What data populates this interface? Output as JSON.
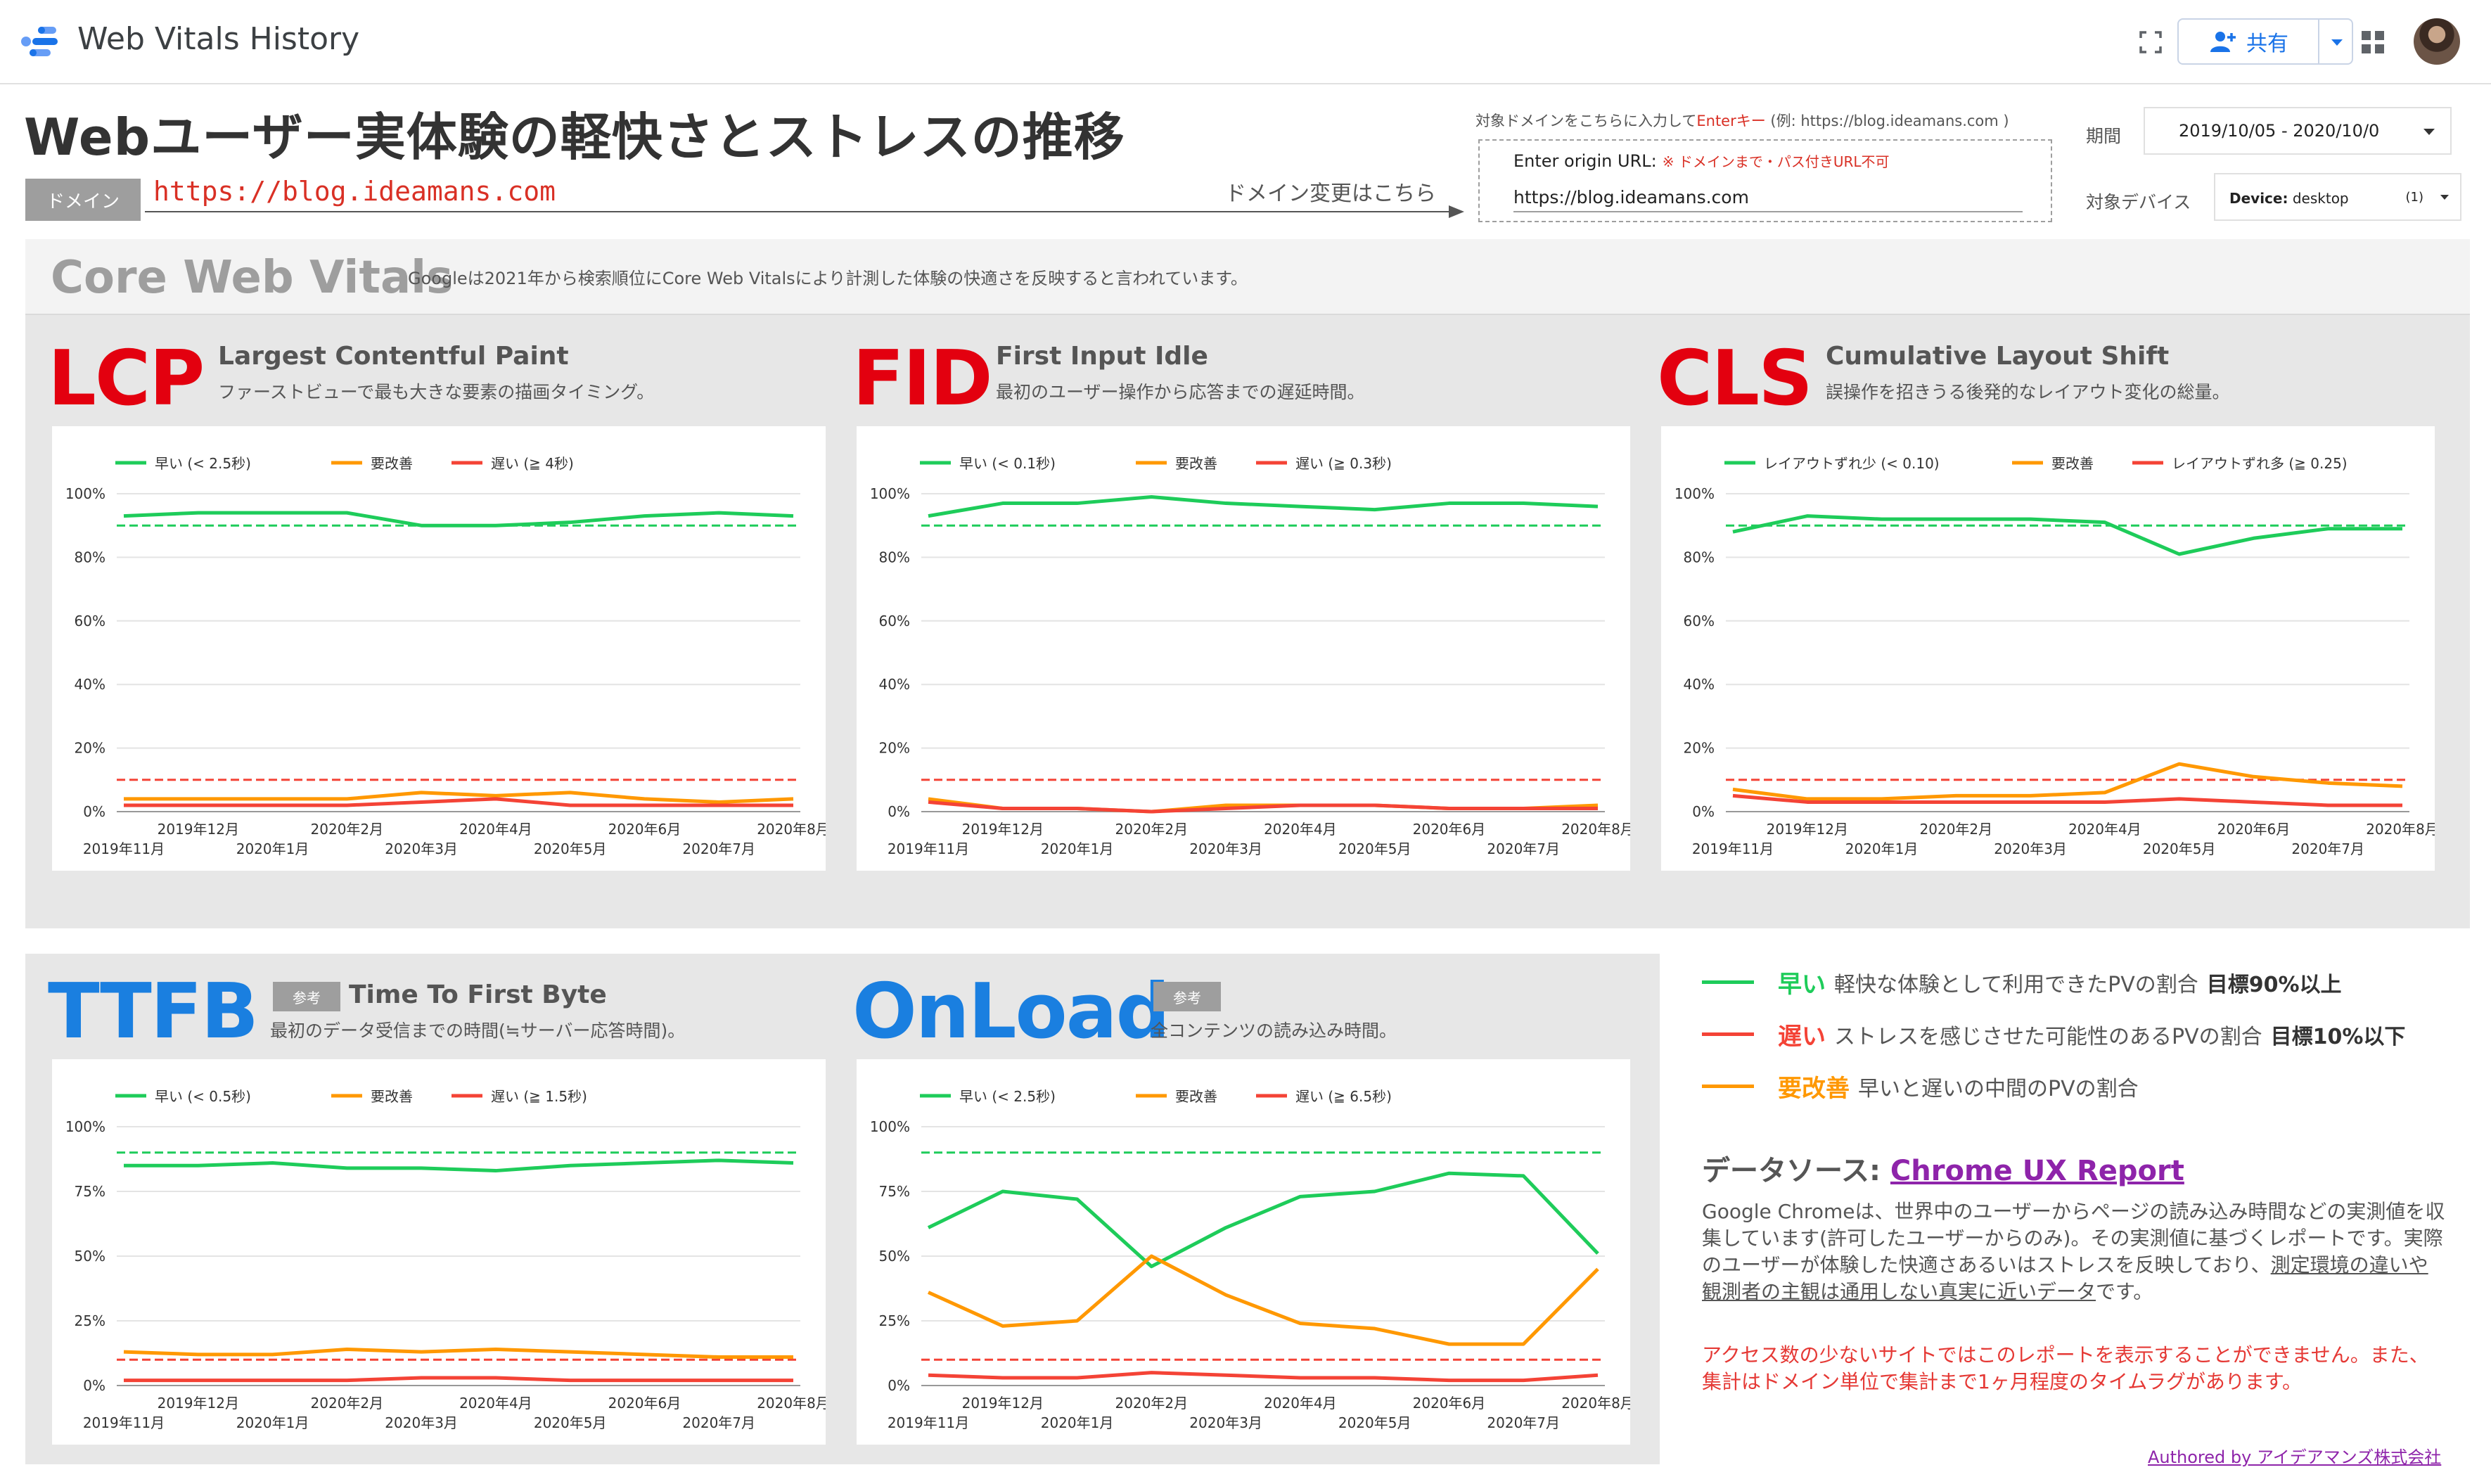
{
  "app": {
    "title": "Web Vitals History",
    "share_label": "共有",
    "icons": [
      "fullscreen-icon",
      "person-add-icon",
      "apps-grid-icon",
      "avatar"
    ]
  },
  "header": {
    "page_title": "Webユーザー実体験の軽快さとストレスの推移",
    "domain_label": "ドメイン",
    "domain_value": "https://blog.ideamans.com",
    "change_label": "ドメイン変更はこちら",
    "hint_prefix": "対象ドメインをこちらに入力して",
    "hint_key": "Enterキー",
    "hint_suffix": " (例: https://blog.ideamans.com )",
    "origin_label": "Enter origin URL:",
    "origin_note": "※ ドメインまで・パス付きURL不可",
    "origin_value": "https://blog.ideamans.com",
    "period_label": "期間",
    "period_value": "2019/10/05 - 2020/10/0",
    "device_label": "対象デバイス",
    "device_name": "Device:",
    "device_value": "desktop",
    "device_count": "(1)"
  },
  "cwv": {
    "title": "Core Web Vitals",
    "subtitle": "Googleは2021年から検索順位にCore Web Vitalsにより計測した体験の快適さを反映すると言われています。"
  },
  "colors": {
    "good": "#1ecc5a",
    "ni": "#ff9800",
    "poor": "#f44336",
    "red_title": "#e3000f",
    "blue_title": "#1a7fe0"
  },
  "metrics": {
    "lcp": {
      "abbr": "LCP",
      "name": "Largest Contentful Paint",
      "desc": "ファーストビューで最も大きな要素の描画タイミング。"
    },
    "fid": {
      "abbr": "FID",
      "name": "First Input Idle",
      "desc": "最初のユーザー操作から応答までの遅延時間。"
    },
    "cls": {
      "abbr": "CLS",
      "name": "Cumulative Layout Shift",
      "desc": "誤操作を招きうる後発的なレイアウト変化の総量。"
    },
    "ttfb": {
      "abbr": "TTFB",
      "badge": "参考",
      "name": "Time To First Byte",
      "desc": "最初のデータ受信までの時間(≒サーバー応答時間)。"
    },
    "onload": {
      "abbr": "OnLoad",
      "badge": "参考",
      "name": "",
      "desc": "全コンテンツの読み込み時間。"
    }
  },
  "chart_data": [
    {
      "id": "lcp",
      "type": "line",
      "x": [
        "2019年11月",
        "2019年12月",
        "2020年1月",
        "2020年2月",
        "2020年3月",
        "2020年4月",
        "2020年5月",
        "2020年6月",
        "2020年7月",
        "2020年8月"
      ],
      "x_ticks_lower": [
        "2019年11月",
        "2020年1月",
        "2020年3月",
        "2020年5月",
        "2020年7月"
      ],
      "x_ticks_upper": [
        "2019年12月",
        "2020年2月",
        "2020年4月",
        "2020年6月",
        "2020年8月"
      ],
      "y_ticks": [
        "0%",
        "20%",
        "40%",
        "60%",
        "80%",
        "100%"
      ],
      "ylim": [
        0,
        100
      ],
      "reference_lines": [
        90,
        10
      ],
      "series": [
        {
          "name": "早い (< 2.5秒)",
          "key": "good",
          "values": [
            93,
            94,
            94,
            94,
            90,
            90,
            91,
            93,
            94,
            93
          ]
        },
        {
          "name": "要改善",
          "key": "ni",
          "values": [
            4,
            4,
            4,
            4,
            6,
            5,
            6,
            4,
            3,
            4
          ]
        },
        {
          "name": "遅い (≧ 4秒)",
          "key": "poor",
          "values": [
            2,
            2,
            2,
            2,
            3,
            4,
            2,
            2,
            2,
            2
          ]
        }
      ]
    },
    {
      "id": "fid",
      "type": "line",
      "x": [
        "2019年11月",
        "2019年12月",
        "2020年1月",
        "2020年2月",
        "2020年3月",
        "2020年4月",
        "2020年5月",
        "2020年6月",
        "2020年7月",
        "2020年8月"
      ],
      "x_ticks_lower": [
        "2019年11月",
        "2020年1月",
        "2020年3月",
        "2020年5月",
        "2020年7月"
      ],
      "x_ticks_upper": [
        "2019年12月",
        "2020年2月",
        "2020年4月",
        "2020年6月",
        "2020年8月"
      ],
      "y_ticks": [
        "0%",
        "20%",
        "40%",
        "60%",
        "80%",
        "100%"
      ],
      "ylim": [
        0,
        100
      ],
      "reference_lines": [
        90,
        10
      ],
      "series": [
        {
          "name": "早い (< 0.1秒)",
          "key": "good",
          "values": [
            93,
            97,
            97,
            99,
            97,
            96,
            95,
            97,
            97,
            96
          ]
        },
        {
          "name": "要改善",
          "key": "ni",
          "values": [
            4,
            1,
            1,
            0,
            2,
            2,
            2,
            1,
            1,
            2
          ]
        },
        {
          "name": "遅い (≧ 0.3秒)",
          "key": "poor",
          "values": [
            3,
            1,
            1,
            0,
            1,
            2,
            2,
            1,
            1,
            1
          ]
        }
      ]
    },
    {
      "id": "cls",
      "type": "line",
      "x": [
        "2019年11月",
        "2019年12月",
        "2020年1月",
        "2020年2月",
        "2020年3月",
        "2020年4月",
        "2020年5月",
        "2020年6月",
        "2020年7月",
        "2020年8月"
      ],
      "x_ticks_lower": [
        "2019年11月",
        "2020年1月",
        "2020年3月",
        "2020年5月",
        "2020年7月"
      ],
      "x_ticks_upper": [
        "2019年12月",
        "2020年2月",
        "2020年4月",
        "2020年6月",
        "2020年8月"
      ],
      "y_ticks": [
        "0%",
        "20%",
        "40%",
        "60%",
        "80%",
        "100%"
      ],
      "ylim": [
        0,
        100
      ],
      "reference_lines": [
        90,
        10
      ],
      "series": [
        {
          "name": "レイアウトずれ少 (< 0.10)",
          "key": "good",
          "values": [
            88,
            93,
            92,
            92,
            92,
            91,
            81,
            86,
            89,
            89
          ]
        },
        {
          "name": "要改善",
          "key": "ni",
          "values": [
            7,
            4,
            4,
            5,
            5,
            6,
            15,
            11,
            9,
            8
          ]
        },
        {
          "name": "レイアウトずれ多 (≧ 0.25)",
          "key": "poor",
          "values": [
            5,
            3,
            3,
            3,
            3,
            3,
            4,
            3,
            2,
            2
          ]
        }
      ]
    },
    {
      "id": "ttfb",
      "type": "line",
      "x": [
        "2019年11月",
        "2019年12月",
        "2020年1月",
        "2020年2月",
        "2020年3月",
        "2020年4月",
        "2020年5月",
        "2020年6月",
        "2020年7月",
        "2020年8月"
      ],
      "x_ticks_lower": [
        "2019年11月",
        "2020年1月",
        "2020年3月",
        "2020年5月",
        "2020年7月"
      ],
      "x_ticks_upper": [
        "2019年12月",
        "2020年2月",
        "2020年4月",
        "2020年6月",
        "2020年8月"
      ],
      "y_ticks": [
        "0%",
        "25%",
        "50%",
        "75%",
        "100%"
      ],
      "ylim": [
        0,
        100
      ],
      "reference_lines": [
        90,
        10
      ],
      "series": [
        {
          "name": "早い (< 0.5秒)",
          "key": "good",
          "values": [
            85,
            85,
            86,
            84,
            84,
            83,
            85,
            86,
            87,
            86
          ]
        },
        {
          "name": "要改善",
          "key": "ni",
          "values": [
            13,
            12,
            12,
            14,
            13,
            14,
            13,
            12,
            11,
            11
          ]
        },
        {
          "name": "遅い (≧ 1.5秒)",
          "key": "poor",
          "values": [
            2,
            2,
            2,
            2,
            3,
            3,
            2,
            2,
            2,
            2
          ]
        }
      ]
    },
    {
      "id": "onload",
      "type": "line",
      "x": [
        "2019年11月",
        "2019年12月",
        "2020年1月",
        "2020年2月",
        "2020年3月",
        "2020年4月",
        "2020年5月",
        "2020年6月",
        "2020年7月",
        "2020年8月"
      ],
      "x_ticks_lower": [
        "2019年11月",
        "2020年1月",
        "2020年3月",
        "2020年5月",
        "2020年7月"
      ],
      "x_ticks_upper": [
        "2019年12月",
        "2020年2月",
        "2020年4月",
        "2020年6月",
        "2020年8月"
      ],
      "y_ticks": [
        "0%",
        "25%",
        "50%",
        "75%",
        "100%"
      ],
      "ylim": [
        0,
        100
      ],
      "reference_lines": [
        90,
        10
      ],
      "series": [
        {
          "name": "早い (< 2.5秒)",
          "key": "good",
          "values": [
            61,
            75,
            72,
            46,
            61,
            73,
            75,
            82,
            81,
            51
          ]
        },
        {
          "name": "要改善",
          "key": "ni",
          "values": [
            36,
            23,
            25,
            50,
            35,
            24,
            22,
            16,
            16,
            45
          ]
        },
        {
          "name": "遅い (≧ 6.5秒)",
          "key": "poor",
          "values": [
            4,
            3,
            3,
            5,
            4,
            3,
            3,
            2,
            2,
            4
          ]
        }
      ]
    }
  ],
  "explanation": {
    "good_kw": "早い",
    "good_text": "軽快な体験として利用できたPVの割合",
    "good_goal": "目標90%以上",
    "poor_kw": "遅い",
    "poor_text": "ストレスを感じさせた可能性のあるPVの割合",
    "poor_goal": "目標10%以下",
    "ni_kw": "要改善",
    "ni_text": "早いと遅いの中間のPVの割合"
  },
  "datasource": {
    "title_prefix": "データソース: ",
    "link": "Chrome UX Report",
    "body_1": "Google Chromeは、世界中のユーザーからページの読み込み時間などの実測値を収集しています(許可したユーザーからのみ)。その実測値に基づくレポートです。実際のユーザーが体験した快適さあるいはストレスを反映しており、",
    "body_underline": "測定環境の違いや観測者の主観は通用しない真実に近いデータ",
    "body_2": "です。",
    "warning": "アクセス数の少ないサイトではこのレポートを表示することができません。また、集計はドメイン単位で集計まで1ヶ月程度のタイムラグがあります。",
    "authored": "Authored by アイデアマンズ株式会社"
  }
}
